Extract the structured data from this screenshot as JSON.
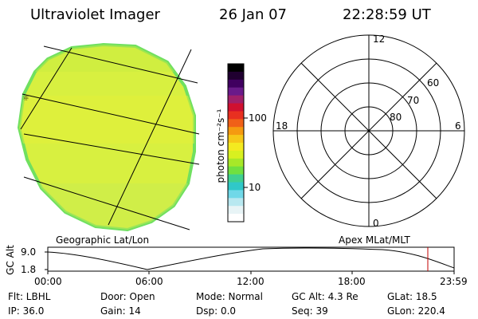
{
  "header": {
    "title": "Ultraviolet Imager",
    "date": "26 Jan 07",
    "time": "22:28:59 UT"
  },
  "colorbar": {
    "unit_label": "photon cm⁻²s⁻¹",
    "ticks": [
      "100",
      "10"
    ],
    "colors": [
      "#000000",
      "#200030",
      "#400060",
      "#6a1a8a",
      "#a0206a",
      "#d01030",
      "#e83020",
      "#f06018",
      "#f59a10",
      "#f6c818",
      "#f4ea20",
      "#d8f020",
      "#a8e828",
      "#70e040",
      "#40d090",
      "#30c8c8",
      "#70d8e8",
      "#b8e8f0",
      "#e8f4f6",
      "#ffffff"
    ]
  },
  "polar": {
    "mlt_labels": {
      "top": "12",
      "bottom": "0",
      "left": "18",
      "right": "6"
    },
    "lat_labels": [
      "60",
      "70",
      "80"
    ]
  },
  "timeline": {
    "left_caption": "Geographic Lat/Lon",
    "right_caption": "Apex MLat/MLT",
    "y_axis_label": "GC Alt",
    "y_ticks": [
      "9.0",
      "1.8"
    ],
    "x_ticks": [
      "00:00",
      "06:00",
      "12:00",
      "18:00",
      "23:59"
    ],
    "marker_color": "#c00000",
    "marker_time": "22:28:59"
  },
  "info": {
    "row1": {
      "flt": "Flt: LBHL",
      "door": "Door: Open",
      "mode": "Mode: Normal",
      "gcalt": "GC Alt: 4.3 Re",
      "glat": "GLat:  18.5"
    },
    "row2": {
      "ip": "IP: 36.0",
      "gain": "Gain: 14",
      "dsp": "Dsp:    0.0",
      "seq": "Seq: 39",
      "glon": "GLon: 220.4"
    }
  },
  "image": {
    "fill_color": "#d8f040",
    "edge_color": "#70e060"
  }
}
